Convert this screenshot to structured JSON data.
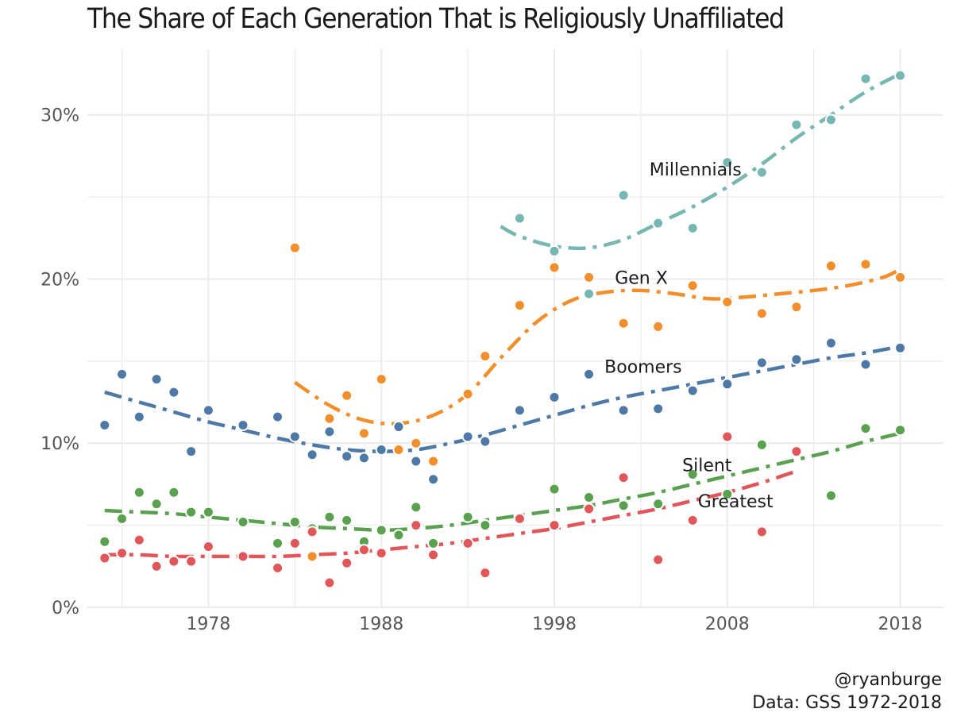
{
  "chart_data": {
    "type": "scatter",
    "title": "The Share of Each Generation That is Religiously Unaffiliated",
    "xlabel": "",
    "ylabel": "",
    "xlim": [
      1971,
      2020.5
    ],
    "ylim": [
      0,
      34
    ],
    "x_ticks": [
      1978,
      1988,
      1998,
      2008,
      2018
    ],
    "y_ticks": [
      0,
      10,
      20,
      30
    ],
    "y_tick_labels": [
      "0%",
      "10%",
      "20%",
      "30%"
    ],
    "grid": true,
    "legend": "none (series labeled directly)",
    "series": [
      {
        "name": "Millennials",
        "color": "#76b7b2",
        "points": [
          [
            1996,
            23.7
          ],
          [
            1998,
            21.7
          ],
          [
            2000,
            19.1
          ],
          [
            2002,
            25.1
          ],
          [
            2004,
            23.4
          ],
          [
            2006,
            23.1
          ],
          [
            2008,
            27.1
          ],
          [
            2010,
            26.5
          ],
          [
            2012,
            29.4
          ],
          [
            2014,
            29.7
          ],
          [
            2016,
            32.2
          ],
          [
            2018,
            32.4
          ]
        ],
        "trend": [
          [
            1994.9,
            23.2
          ],
          [
            1996,
            22.6
          ],
          [
            1998,
            22.0
          ],
          [
            2000,
            21.9
          ],
          [
            2002,
            22.4
          ],
          [
            2004,
            23.4
          ],
          [
            2006,
            24.4
          ],
          [
            2008,
            25.6
          ],
          [
            2010,
            27.0
          ],
          [
            2012,
            28.6
          ],
          [
            2014,
            30.0
          ],
          [
            2016,
            31.4
          ],
          [
            2018,
            32.5
          ]
        ],
        "label_pos": [
          2003.5,
          26.3
        ]
      },
      {
        "name": "Gen X",
        "color": "#f28e2b",
        "points": [
          [
            1983,
            21.9
          ],
          [
            1984,
            3.1
          ],
          [
            1985,
            11.5
          ],
          [
            1986,
            12.9
          ],
          [
            1987,
            10.6
          ],
          [
            1988,
            13.9
          ],
          [
            1989,
            9.6
          ],
          [
            1990,
            10.0
          ],
          [
            1991,
            8.9
          ],
          [
            1993,
            13.0
          ],
          [
            1994,
            15.3
          ],
          [
            1996,
            18.4
          ],
          [
            1998,
            20.7
          ],
          [
            2000,
            20.1
          ],
          [
            2002,
            17.3
          ],
          [
            2004,
            17.1
          ],
          [
            2006,
            19.6
          ],
          [
            2008,
            18.6
          ],
          [
            2010,
            17.9
          ],
          [
            2012,
            18.3
          ],
          [
            2014,
            20.8
          ],
          [
            2016,
            20.9
          ],
          [
            2018,
            20.1
          ]
        ],
        "trend": [
          [
            1983,
            13.7
          ],
          [
            1985,
            12.3
          ],
          [
            1987,
            11.4
          ],
          [
            1989,
            11.2
          ],
          [
            1991,
            11.7
          ],
          [
            1993,
            13.0
          ],
          [
            1995,
            15.3
          ],
          [
            1997,
            17.4
          ],
          [
            1999,
            18.7
          ],
          [
            2001,
            19.2
          ],
          [
            2003,
            19.3
          ],
          [
            2005,
            19.1
          ],
          [
            2007,
            18.8
          ],
          [
            2009,
            18.9
          ],
          [
            2011,
            19.1
          ],
          [
            2013,
            19.3
          ],
          [
            2015,
            19.6
          ],
          [
            2017,
            20.1
          ],
          [
            2018,
            20.6
          ]
        ],
        "label_pos": [
          2001.5,
          19.7
        ]
      },
      {
        "name": "Boomers",
        "color": "#4e79a7",
        "points": [
          [
            1972,
            11.1
          ],
          [
            1973,
            14.2
          ],
          [
            1974,
            11.6
          ],
          [
            1975,
            13.9
          ],
          [
            1976,
            13.1
          ],
          [
            1977,
            9.5
          ],
          [
            1978,
            12.0
          ],
          [
            1980,
            11.1
          ],
          [
            1982,
            11.6
          ],
          [
            1983,
            10.4
          ],
          [
            1984,
            9.3
          ],
          [
            1985,
            10.7
          ],
          [
            1986,
            9.2
          ],
          [
            1987,
            9.1
          ],
          [
            1988,
            9.6
          ],
          [
            1989,
            11.0
          ],
          [
            1990,
            8.9
          ],
          [
            1991,
            7.8
          ],
          [
            1993,
            10.4
          ],
          [
            1994,
            10.1
          ],
          [
            1996,
            12.0
          ],
          [
            1998,
            12.8
          ],
          [
            2000,
            14.2
          ],
          [
            2002,
            12.0
          ],
          [
            2004,
            12.1
          ],
          [
            2006,
            13.2
          ],
          [
            2008,
            13.6
          ],
          [
            2010,
            14.9
          ],
          [
            2012,
            15.1
          ],
          [
            2014,
            16.1
          ],
          [
            2016,
            14.8
          ],
          [
            2018,
            15.8
          ]
        ],
        "trend": [
          [
            1972,
            13.1
          ],
          [
            1974,
            12.5
          ],
          [
            1976,
            11.9
          ],
          [
            1978,
            11.3
          ],
          [
            1980,
            10.8
          ],
          [
            1982,
            10.3
          ],
          [
            1984,
            9.9
          ],
          [
            1986,
            9.6
          ],
          [
            1988,
            9.5
          ],
          [
            1990,
            9.6
          ],
          [
            1992,
            10.0
          ],
          [
            1994,
            10.5
          ],
          [
            1996,
            11.1
          ],
          [
            1998,
            11.7
          ],
          [
            2000,
            12.3
          ],
          [
            2002,
            12.8
          ],
          [
            2004,
            13.2
          ],
          [
            2006,
            13.6
          ],
          [
            2008,
            14.0
          ],
          [
            2010,
            14.4
          ],
          [
            2012,
            14.8
          ],
          [
            2014,
            15.2
          ],
          [
            2016,
            15.5
          ],
          [
            2018,
            15.9
          ]
        ],
        "label_pos": [
          2000.9,
          14.3
        ]
      },
      {
        "name": "Silent",
        "color": "#59a14f",
        "points": [
          [
            1972,
            4.0
          ],
          [
            1973,
            5.4
          ],
          [
            1974,
            7.0
          ],
          [
            1975,
            6.3
          ],
          [
            1976,
            7.0
          ],
          [
            1977,
            5.8
          ],
          [
            1978,
            5.8
          ],
          [
            1980,
            5.2
          ],
          [
            1982,
            3.9
          ],
          [
            1983,
            5.2
          ],
          [
            1984,
            4.8
          ],
          [
            1985,
            5.5
          ],
          [
            1986,
            5.3
          ],
          [
            1987,
            4.0
          ],
          [
            1988,
            4.7
          ],
          [
            1989,
            4.4
          ],
          [
            1990,
            6.1
          ],
          [
            1991,
            3.9
          ],
          [
            1993,
            5.5
          ],
          [
            1994,
            5.0
          ],
          [
            1996,
            5.4
          ],
          [
            1998,
            7.2
          ],
          [
            2000,
            6.7
          ],
          [
            2002,
            6.2
          ],
          [
            2004,
            6.3
          ],
          [
            2006,
            8.1
          ],
          [
            2008,
            6.9
          ],
          [
            2010,
            9.9
          ],
          [
            2012,
            9.5
          ],
          [
            2014,
            6.8
          ],
          [
            2016,
            10.9
          ],
          [
            2018,
            10.8
          ]
        ],
        "trend": [
          [
            1972,
            5.9
          ],
          [
            1974,
            5.8
          ],
          [
            1976,
            5.7
          ],
          [
            1978,
            5.5
          ],
          [
            1980,
            5.3
          ],
          [
            1982,
            5.1
          ],
          [
            1984,
            4.9
          ],
          [
            1986,
            4.8
          ],
          [
            1988,
            4.7
          ],
          [
            1990,
            4.8
          ],
          [
            1992,
            5.0
          ],
          [
            1994,
            5.3
          ],
          [
            1996,
            5.6
          ],
          [
            1998,
            5.9
          ],
          [
            2000,
            6.2
          ],
          [
            2002,
            6.6
          ],
          [
            2004,
            7.0
          ],
          [
            2006,
            7.5
          ],
          [
            2008,
            8.0
          ],
          [
            2010,
            8.5
          ],
          [
            2012,
            9.0
          ],
          [
            2014,
            9.5
          ],
          [
            2016,
            10.1
          ],
          [
            2018,
            10.6
          ]
        ],
        "label_pos": [
          2005.4,
          8.3
        ]
      },
      {
        "name": "Greatest",
        "color": "#e15759",
        "points": [
          [
            1972,
            3.0
          ],
          [
            1973,
            3.3
          ],
          [
            1974,
            4.1
          ],
          [
            1975,
            2.5
          ],
          [
            1976,
            2.8
          ],
          [
            1977,
            2.8
          ],
          [
            1978,
            3.7
          ],
          [
            1980,
            3.1
          ],
          [
            1982,
            2.4
          ],
          [
            1983,
            3.9
          ],
          [
            1984,
            4.6
          ],
          [
            1985,
            1.5
          ],
          [
            1986,
            2.7
          ],
          [
            1987,
            3.5
          ],
          [
            1988,
            3.3
          ],
          [
            1990,
            5.0
          ],
          [
            1991,
            3.2
          ],
          [
            1993,
            3.9
          ],
          [
            1994,
            2.1
          ],
          [
            1996,
            5.4
          ],
          [
            1998,
            5.0
          ],
          [
            2000,
            6.0
          ],
          [
            2002,
            7.9
          ],
          [
            2004,
            2.9
          ],
          [
            2006,
            5.3
          ],
          [
            2008,
            10.4
          ],
          [
            2010,
            4.6
          ],
          [
            2012,
            9.5
          ]
        ],
        "trend": [
          [
            1972,
            3.2
          ],
          [
            1974,
            3.2
          ],
          [
            1976,
            3.1
          ],
          [
            1978,
            3.1
          ],
          [
            1980,
            3.1
          ],
          [
            1982,
            3.1
          ],
          [
            1984,
            3.2
          ],
          [
            1986,
            3.3
          ],
          [
            1988,
            3.5
          ],
          [
            1990,
            3.7
          ],
          [
            1992,
            3.9
          ],
          [
            1994,
            4.2
          ],
          [
            1996,
            4.5
          ],
          [
            1998,
            4.8
          ],
          [
            2000,
            5.2
          ],
          [
            2002,
            5.6
          ],
          [
            2004,
            6.0
          ],
          [
            2006,
            6.5
          ],
          [
            2008,
            7.0
          ],
          [
            2010,
            7.6
          ],
          [
            2012,
            8.3
          ]
        ],
        "label_pos": [
          2006.3,
          6.1
        ]
      }
    ]
  },
  "caption": {
    "handle": "@ryanburge",
    "source": "Data: GSS 1972-2018"
  }
}
